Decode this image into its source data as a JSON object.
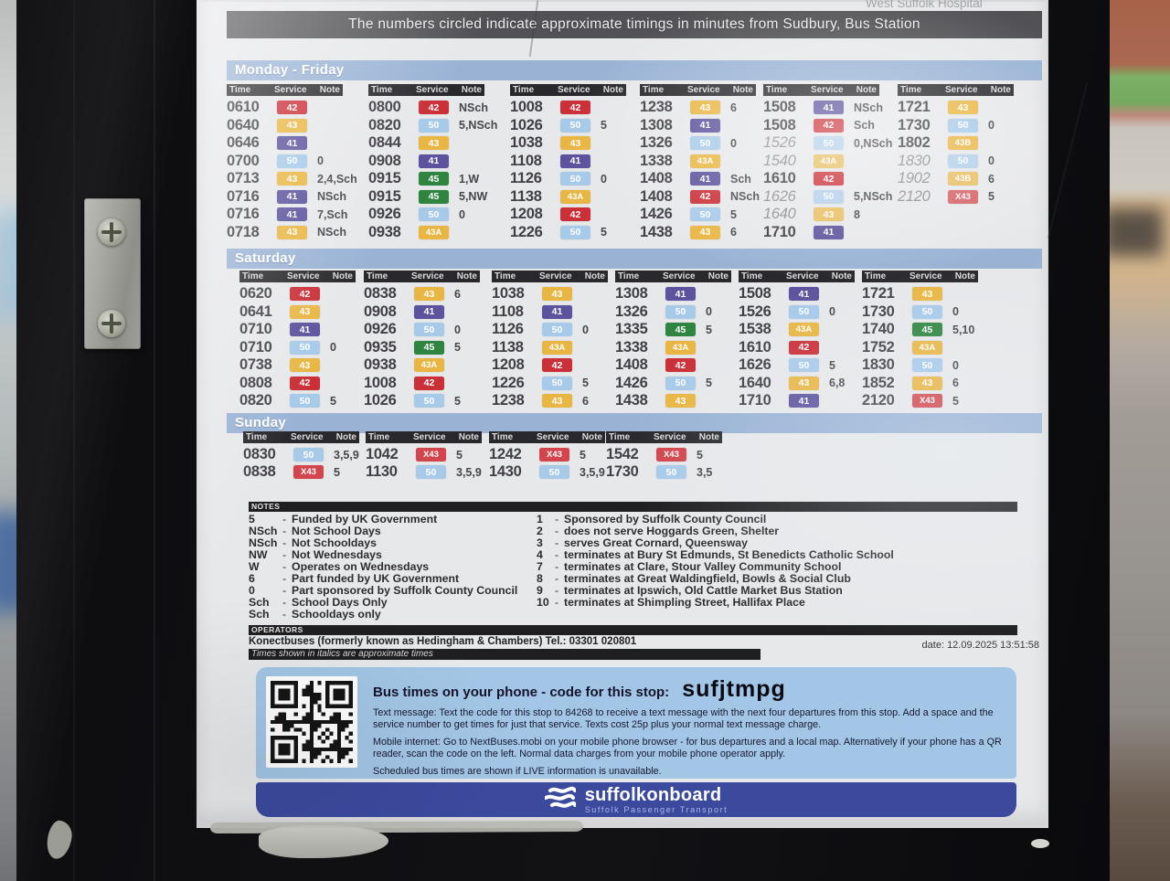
{
  "banner": {
    "destination_fragment": "West Suffolk Hospital",
    "text": "The numbers circled indicate approximate timings in minutes from Sudbury, Bus Station"
  },
  "col_headers": {
    "time": "Time",
    "service": "Service",
    "note": "Note"
  },
  "service_colors": {
    "42": "#cb2f37",
    "43": "#e9b643",
    "43A": "#e9b643",
    "43B": "#e9b643",
    "41": "#5b539d",
    "50": "#a7cae9",
    "45": "#2f8540",
    "X43": "#d2454c"
  },
  "colors": {
    "band_blue": "#9ab3d5",
    "box_blue": "#a3c6e6",
    "footer_blue": "#3c4a9e",
    "header_bar": "#29292d"
  },
  "sections": [
    {
      "label": "Monday - Friday",
      "columns": [
        [
          {
            "t": "0610",
            "s": "42",
            "n": ""
          },
          {
            "t": "0640",
            "s": "43",
            "n": ""
          },
          {
            "t": "0646",
            "s": "41",
            "n": ""
          },
          {
            "t": "0700",
            "s": "50",
            "n": "0"
          },
          {
            "t": "0713",
            "s": "43",
            "n": "2,4,Sch"
          },
          {
            "t": "0716",
            "s": "41",
            "n": "NSch"
          },
          {
            "t": "0716",
            "s": "41",
            "n": "7,Sch"
          },
          {
            "t": "0718",
            "s": "43",
            "n": "NSch"
          }
        ],
        [
          {
            "t": "0800",
            "s": "42",
            "n": "NSch"
          },
          {
            "t": "0820",
            "s": "50",
            "n": "5,NSch"
          },
          {
            "t": "0844",
            "s": "43",
            "n": ""
          },
          {
            "t": "0908",
            "s": "41",
            "n": ""
          },
          {
            "t": "0915",
            "s": "45",
            "n": "1,W"
          },
          {
            "t": "0915",
            "s": "45",
            "n": "5,NW"
          },
          {
            "t": "0926",
            "s": "50",
            "n": "0"
          },
          {
            "t": "0938",
            "s": "43A",
            "n": ""
          }
        ],
        [
          {
            "t": "1008",
            "s": "42",
            "n": ""
          },
          {
            "t": "1026",
            "s": "50",
            "n": "5"
          },
          {
            "t": "1038",
            "s": "43",
            "n": ""
          },
          {
            "t": "1108",
            "s": "41",
            "n": ""
          },
          {
            "t": "1126",
            "s": "50",
            "n": "0"
          },
          {
            "t": "1138",
            "s": "43A",
            "n": ""
          },
          {
            "t": "1208",
            "s": "42",
            "n": ""
          },
          {
            "t": "1226",
            "s": "50",
            "n": "5"
          }
        ],
        [
          {
            "t": "1238",
            "s": "43",
            "n": "6"
          },
          {
            "t": "1308",
            "s": "41",
            "n": ""
          },
          {
            "t": "1326",
            "s": "50",
            "n": "0"
          },
          {
            "t": "1338",
            "s": "43A",
            "n": ""
          },
          {
            "t": "1408",
            "s": "41",
            "n": "Sch"
          },
          {
            "t": "1408",
            "s": "42",
            "n": "NSch"
          },
          {
            "t": "1426",
            "s": "50",
            "n": "5"
          },
          {
            "t": "1438",
            "s": "43",
            "n": "6"
          }
        ],
        [
          {
            "t": "1508",
            "s": "41",
            "n": "NSch"
          },
          {
            "t": "1508",
            "s": "42",
            "n": "Sch"
          },
          {
            "t": "1526",
            "s": "50",
            "n": "0,NSch",
            "i": true
          },
          {
            "t": "1540",
            "s": "43A",
            "n": "",
            "i": true
          },
          {
            "t": "1610",
            "s": "42",
            "n": ""
          },
          {
            "t": "1626",
            "s": "50",
            "n": "5,NSch",
            "i": true
          },
          {
            "t": "1640",
            "s": "43",
            "n": "8",
            "i": true
          },
          {
            "t": "1710",
            "s": "41",
            "n": ""
          }
        ],
        [
          {
            "t": "1721",
            "s": "43",
            "n": ""
          },
          {
            "t": "1730",
            "s": "50",
            "n": "0"
          },
          {
            "t": "1802",
            "s": "43B",
            "n": ""
          },
          {
            "t": "1830",
            "s": "50",
            "n": "0",
            "i": true
          },
          {
            "t": "1902",
            "s": "43B",
            "n": "6",
            "i": true
          },
          {
            "t": "2120",
            "s": "X43",
            "n": "5",
            "i": true
          }
        ]
      ]
    },
    {
      "label": "Saturday",
      "columns": [
        [
          {
            "t": "0620",
            "s": "42",
            "n": ""
          },
          {
            "t": "0641",
            "s": "43",
            "n": ""
          },
          {
            "t": "0710",
            "s": "41",
            "n": ""
          },
          {
            "t": "0710",
            "s": "50",
            "n": "0"
          },
          {
            "t": "0738",
            "s": "43",
            "n": ""
          },
          {
            "t": "0808",
            "s": "42",
            "n": ""
          },
          {
            "t": "0820",
            "s": "50",
            "n": "5"
          }
        ],
        [
          {
            "t": "0838",
            "s": "43",
            "n": "6"
          },
          {
            "t": "0908",
            "s": "41",
            "n": ""
          },
          {
            "t": "0926",
            "s": "50",
            "n": "0"
          },
          {
            "t": "0935",
            "s": "45",
            "n": "5"
          },
          {
            "t": "0938",
            "s": "43A",
            "n": ""
          },
          {
            "t": "1008",
            "s": "42",
            "n": ""
          },
          {
            "t": "1026",
            "s": "50",
            "n": "5"
          }
        ],
        [
          {
            "t": "1038",
            "s": "43",
            "n": ""
          },
          {
            "t": "1108",
            "s": "41",
            "n": ""
          },
          {
            "t": "1126",
            "s": "50",
            "n": "0"
          },
          {
            "t": "1138",
            "s": "43A",
            "n": ""
          },
          {
            "t": "1208",
            "s": "42",
            "n": ""
          },
          {
            "t": "1226",
            "s": "50",
            "n": "5"
          },
          {
            "t": "1238",
            "s": "43",
            "n": "6"
          }
        ],
        [
          {
            "t": "1308",
            "s": "41",
            "n": ""
          },
          {
            "t": "1326",
            "s": "50",
            "n": "0"
          },
          {
            "t": "1335",
            "s": "45",
            "n": "5"
          },
          {
            "t": "1338",
            "s": "43A",
            "n": ""
          },
          {
            "t": "1408",
            "s": "42",
            "n": ""
          },
          {
            "t": "1426",
            "s": "50",
            "n": "5"
          },
          {
            "t": "1438",
            "s": "43",
            "n": ""
          }
        ],
        [
          {
            "t": "1508",
            "s": "41",
            "n": ""
          },
          {
            "t": "1526",
            "s": "50",
            "n": "0"
          },
          {
            "t": "1538",
            "s": "43A",
            "n": ""
          },
          {
            "t": "1610",
            "s": "42",
            "n": ""
          },
          {
            "t": "1626",
            "s": "50",
            "n": "5"
          },
          {
            "t": "1640",
            "s": "43",
            "n": "6,8"
          },
          {
            "t": "1710",
            "s": "41",
            "n": ""
          }
        ],
        [
          {
            "t": "1721",
            "s": "43",
            "n": ""
          },
          {
            "t": "1730",
            "s": "50",
            "n": "0"
          },
          {
            "t": "1740",
            "s": "45",
            "n": "5,10"
          },
          {
            "t": "1752",
            "s": "43A",
            "n": ""
          },
          {
            "t": "1830",
            "s": "50",
            "n": "0"
          },
          {
            "t": "1852",
            "s": "43",
            "n": "6"
          },
          {
            "t": "2120",
            "s": "X43",
            "n": "5"
          }
        ]
      ]
    },
    {
      "label": "Sunday",
      "columns": [
        [
          {
            "t": "0830",
            "s": "50",
            "n": "3,5,9"
          },
          {
            "t": "0838",
            "s": "X43",
            "n": "5"
          }
        ],
        [
          {
            "t": "1042",
            "s": "X43",
            "n": "5"
          },
          {
            "t": "1130",
            "s": "50",
            "n": "3,5,9"
          }
        ],
        [
          {
            "t": "1242",
            "s": "X43",
            "n": "5"
          },
          {
            "t": "1430",
            "s": "50",
            "n": "3,5,9"
          }
        ],
        [
          {
            "t": "1542",
            "s": "X43",
            "n": "5"
          },
          {
            "t": "1730",
            "s": "50",
            "n": "3,5"
          }
        ]
      ]
    }
  ],
  "notes": {
    "header": "NOTES",
    "left": [
      {
        "sym": "5",
        "text": "Funded by UK Government"
      },
      {
        "sym": "NSch",
        "text": "Not School Days"
      },
      {
        "sym": "NSch",
        "text": "Not Schooldays"
      },
      {
        "sym": "NW",
        "text": "Not Wednesdays"
      },
      {
        "sym": "W",
        "text": "Operates on Wednesdays"
      },
      {
        "sym": "6",
        "text": "Part funded by UK Government"
      },
      {
        "sym": "0",
        "text": "Part sponsored by Suffolk County Council"
      },
      {
        "sym": "Sch",
        "text": "School Days Only"
      },
      {
        "sym": "Sch",
        "text": "Schooldays only"
      }
    ],
    "right": [
      {
        "num": "1",
        "text": "Sponsored by Suffolk County Council"
      },
      {
        "num": "2",
        "text": "does not serve Hoggards Green, Shelter"
      },
      {
        "num": "3",
        "text": "serves Great Cornard, Queensway"
      },
      {
        "num": "4",
        "text": "terminates at Bury St Edmunds, St Benedicts Catholic School"
      },
      {
        "num": "7",
        "text": "terminates at Clare, Stour Valley Community School"
      },
      {
        "num": "8",
        "text": "terminates at Great Waldingfield, Bowls & Social Club"
      },
      {
        "num": "9",
        "text": "terminates at Ipswich, Old Cattle Market Bus Station"
      },
      {
        "num": "10",
        "text": "terminates at Shimpling Street, Hallifax Place"
      }
    ]
  },
  "operators": {
    "header": "OPERATORS",
    "line": "Konectbuses (formerly known as Hedingham & Chambers) Tel.: 03301 020801",
    "italics_note": "Times shown in italics are approximate times",
    "date": "date: 12.09.2025 13:51:58"
  },
  "phone_box": {
    "heading": "Bus times on your phone - code for this stop:",
    "code": "sufjtmpg",
    "para_sms": "Text message: Text the code for this stop to 84268 to receive a text message with the next four departures from this stop.  Add a space and the service number to get times for just that service. Texts cost 25p plus your normal text message charge.",
    "para_mobile": "Mobile internet: Go to NextBuses.mobi on your mobile phone browser - for bus departures and a local map.  Alternatively if your phone has a QR reader, scan the code on the left.  Normal data charges from your mobile phone operator apply.",
    "para_live": "Scheduled bus times are shown if LIVE information is unavailable."
  },
  "footer": {
    "brand": "suffolkonboard",
    "tagline": "Suffolk Passenger Transport"
  }
}
